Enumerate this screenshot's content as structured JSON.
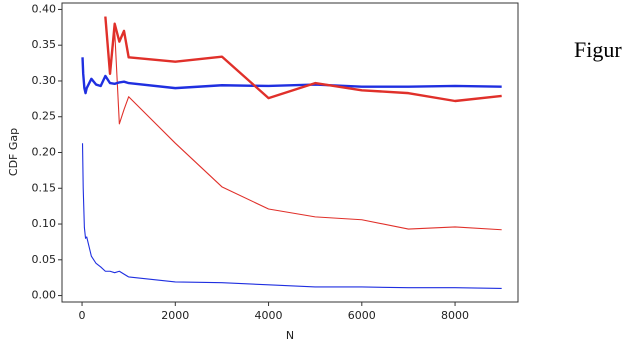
{
  "chart_data": {
    "type": "line",
    "x_label": "N",
    "y_label": "CDF Gap",
    "annotation": "Figur",
    "x": [
      10,
      25,
      50,
      75,
      100,
      200,
      300,
      400,
      500,
      600,
      700,
      800,
      900,
      1000,
      2000,
      3000,
      4000,
      5000,
      6000,
      7000,
      8000,
      9000
    ],
    "series": [
      {
        "color": "#1f2fe0",
        "style": "thin",
        "values": [
          0.213,
          0.15,
          0.095,
          0.08,
          0.082,
          0.055,
          0.045,
          0.04,
          0.034,
          0.034,
          0.032,
          0.034,
          0.03,
          0.026,
          0.019,
          0.018,
          0.015,
          0.012,
          0.012,
          0.011,
          0.011,
          0.01
        ]
      },
      {
        "color": "#e0302a",
        "style": "thin",
        "values": [
          null,
          null,
          null,
          null,
          null,
          null,
          null,
          null,
          0.39,
          0.31,
          0.37,
          0.24,
          0.26,
          0.278,
          0.213,
          0.152,
          0.121,
          0.11,
          0.106,
          0.093,
          0.096,
          0.092
        ]
      },
      {
        "color": "#1f2fe0",
        "style": "thick",
        "values": [
          0.333,
          0.31,
          0.29,
          0.283,
          0.29,
          0.303,
          0.295,
          0.293,
          0.307,
          0.297,
          0.296,
          0.298,
          0.299,
          0.297,
          0.29,
          0.294,
          0.293,
          0.295,
          0.292,
          0.292,
          0.293,
          0.292
        ]
      },
      {
        "color": "#e0302a",
        "style": "thick",
        "values": [
          null,
          null,
          null,
          null,
          null,
          null,
          null,
          null,
          0.39,
          0.31,
          0.38,
          0.355,
          0.37,
          0.333,
          0.327,
          0.334,
          0.276,
          0.297,
          0.287,
          0.283,
          0.272,
          0.279
        ]
      }
    ],
    "xlim": [
      -430,
      9350
    ],
    "ylim": [
      -0.009,
      0.409
    ],
    "xticks": [
      0,
      2000,
      4000,
      6000,
      8000
    ],
    "yticks": [
      {
        "value": 0,
        "label": "0.00"
      },
      {
        "value": 0.05,
        "label": "0.05"
      },
      {
        "value": 0.1,
        "label": "0.10"
      },
      {
        "value": 0.15,
        "label": "0.15"
      },
      {
        "value": 0.2,
        "label": "0.20"
      },
      {
        "value": 0.25,
        "label": "0.25"
      },
      {
        "value": 0.3,
        "label": "0.30"
      },
      {
        "value": 0.35,
        "label": "0.35"
      },
      {
        "value": 0.4,
        "label": "0.40"
      }
    ]
  }
}
